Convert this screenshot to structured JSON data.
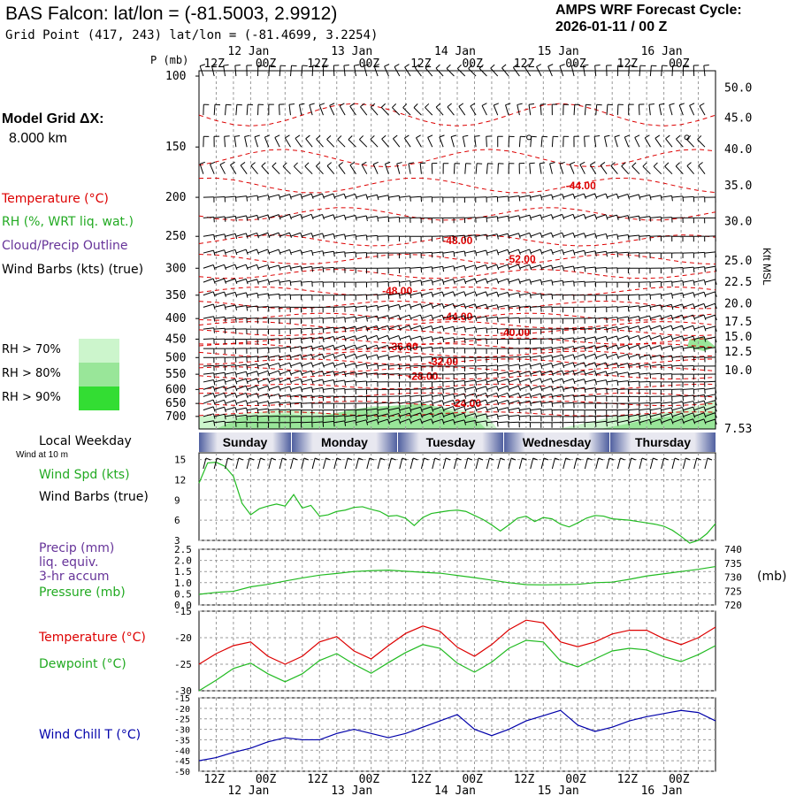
{
  "header": {
    "title": "BAS Falcon:  lat/lon = (-81.5003, 2.9912)",
    "grid_point": "Grid Point (417, 243) lat/lon = (-81.4699, 3.2254)",
    "forecast_line1": "AMPS WRF Forecast Cycle:",
    "forecast_line2": "2026-01-11 / 00  Z"
  },
  "sidebar": {
    "model_grid_label": "Model Grid ΔX:",
    "model_grid_value": "8.000 km",
    "temperature_label": "Temperature (°C)",
    "rh_label": "RH (%, WRT liq. wat.)",
    "cloud_label": "Cloud/Precip Outline",
    "wind_barbs_label": "Wind Barbs (kts) (true)",
    "rh70": "RH > 70%",
    "rh80": "RH > 80%",
    "rh90": "RH > 90%",
    "local_weekday": "Local Weekday",
    "wind_at_10m": "Wind at 10 m",
    "wind_spd_label": "Wind Spd (kts)",
    "wind_barbs_label2": "Wind Barbs (true)",
    "precip_label1": "Precip (mm)",
    "precip_label2": "liq. equiv.",
    "precip_label3": "3-hr accum",
    "pressure_label": "Pressure (mb)",
    "pressure_unit": "(mb)",
    "temp_label2": "Temperature (°C)",
    "dewpoint_label": "Dewpoint (°C)",
    "windchill_label": "Wind Chill T (°C)",
    "kft_label": "Kft MSL",
    "p_axis_label": "P (mb)"
  },
  "colors": {
    "temperature": "#dd0000",
    "rh_light": "#ccf5cc",
    "rh_mid": "#99e699",
    "rh_dark": "#33dd33",
    "rh_text": "#22aa22",
    "cloud": "#663399",
    "windchill": "#0000aa",
    "weekday_band": "#5060a0"
  },
  "chart_data": [
    {
      "type": "time-height cross-section",
      "title": "Temperature, RH, wind barbs vs pressure",
      "time_top_labels": [
        "12Z",
        "00Z",
        "12Z",
        "00Z",
        "12Z",
        "00Z",
        "12Z",
        "00Z",
        "12Z",
        "00Z"
      ],
      "date_top_labels": [
        "12 Jan",
        "13 Jan",
        "14 Jan",
        "15 Jan",
        "16 Jan"
      ],
      "pressure_levels": [
        100,
        150,
        200,
        250,
        300,
        350,
        400,
        450,
        500,
        550,
        600,
        650,
        700
      ],
      "height_kft_labels": [
        "50.0",
        "45.0",
        "40.0",
        "35.0",
        "30.0",
        "25.0",
        "22.5",
        "20.0",
        "17.5",
        "15.0",
        "12.5",
        "10.0",
        "7.53"
      ],
      "height_kft_pressure": [
        107,
        127,
        152,
        187,
        230,
        288,
        325,
        368,
        408,
        445,
        484,
        538,
        752
      ],
      "temperature_labels": [
        {
          "text": "-44.00",
          "time_h": 134,
          "p": 187
        },
        {
          "text": "-48.00",
          "time_h": 91,
          "p": 256
        },
        {
          "text": "-52.00",
          "time_h": 113,
          "p": 285
        },
        {
          "text": "-48.00",
          "time_h": 70,
          "p": 342
        },
        {
          "text": "-44.00",
          "time_h": 91,
          "p": 396
        },
        {
          "text": "-40.00",
          "time_h": 111,
          "p": 433
        },
        {
          "text": "-36.00",
          "time_h": 72,
          "p": 470
        },
        {
          "text": "-32.00",
          "time_h": 86,
          "p": 512
        },
        {
          "text": "-28.00",
          "time_h": 79,
          "p": 557
        },
        {
          "text": "-24.00",
          "time_h": 94,
          "p": 650
        }
      ]
    },
    {
      "type": "line",
      "title": "Wind Spd (kts)",
      "x_hours": [
        0,
        3,
        6,
        9,
        12,
        15,
        18,
        21,
        24,
        27,
        30,
        33,
        36,
        39,
        42,
        45,
        48,
        51,
        54,
        57,
        60,
        63,
        66,
        69,
        72,
        75,
        78,
        81,
        84,
        87,
        90,
        93,
        96,
        99,
        102,
        105,
        108,
        111,
        114,
        117,
        120,
        123,
        126,
        129,
        132,
        135,
        138,
        141,
        144,
        147,
        150,
        153,
        156,
        159,
        162,
        165,
        168,
        171,
        174,
        177,
        180
      ],
      "values": [
        11.5,
        14.5,
        14.6,
        14.0,
        12.5,
        8.5,
        6.8,
        7.7,
        8.1,
        8.4,
        8.1,
        9.8,
        7.8,
        8.2,
        6.6,
        6.8,
        7.3,
        7.5,
        7.9,
        8.0,
        7.6,
        7.3,
        6.6,
        6.7,
        6.3,
        5.2,
        6.4,
        7.0,
        7.2,
        7.4,
        7.5,
        7.3,
        6.7,
        6.1,
        5.3,
        4.4,
        5.3,
        6.3,
        6.6,
        5.8,
        6.4,
        6.2,
        5.4,
        5.0,
        5.6,
        6.3,
        6.7,
        6.6,
        6.2,
        6.1,
        6.0,
        5.8,
        5.6,
        5.4,
        5.1,
        4.5,
        3.6,
        2.6,
        3.0,
        4.0,
        5.5
      ],
      "yticks": [
        3,
        6,
        9,
        12,
        15
      ],
      "ylim": [
        3,
        16
      ]
    },
    {
      "type": "line",
      "title": "Pressure (mb)",
      "x_hours": [
        0,
        6,
        12,
        18,
        24,
        30,
        36,
        42,
        48,
        54,
        60,
        66,
        72,
        78,
        84,
        90,
        96,
        102,
        108,
        114,
        120,
        126,
        132,
        138,
        144,
        150,
        156,
        162,
        168,
        174,
        180
      ],
      "values": [
        723.8,
        724.5,
        724.9,
        726.5,
        727.4,
        728.6,
        729.7,
        730.7,
        731.3,
        732.0,
        732.3,
        732.5,
        732.1,
        731.7,
        731.4,
        730.6,
        729.8,
        728.9,
        728.0,
        727.3,
        727.2,
        727.3,
        727.4,
        728.0,
        728.2,
        729.2,
        730.4,
        731.2,
        732.0,
        732.8,
        733.8
      ],
      "yticks_left": [
        "0.0",
        "0.5",
        "1.0",
        "1.5",
        "2.0",
        "2.5"
      ],
      "yticks_right": [
        "720",
        "725",
        "730",
        "735",
        "740"
      ],
      "ylim": [
        720,
        740
      ]
    },
    {
      "type": "line",
      "title": "Temperature / Dewpoint (°C)",
      "x_hours": [
        0,
        6,
        12,
        18,
        24,
        30,
        36,
        42,
        48,
        54,
        60,
        66,
        72,
        78,
        84,
        90,
        96,
        102,
        108,
        114,
        120,
        126,
        132,
        138,
        144,
        150,
        156,
        162,
        168,
        174,
        180
      ],
      "series": [
        {
          "name": "Temperature",
          "values": [
            -25.0,
            -23.0,
            -21.5,
            -20.8,
            -23.5,
            -25.0,
            -23.5,
            -20.8,
            -19.8,
            -22.5,
            -24.0,
            -21.5,
            -19.2,
            -17.8,
            -18.8,
            -21.8,
            -23.5,
            -21.3,
            -18.5,
            -16.7,
            -17.2,
            -20.8,
            -21.7,
            -20.8,
            -19.3,
            -18.6,
            -18.6,
            -20.2,
            -21.3,
            -20.0,
            -18.0
          ]
        },
        {
          "name": "Dewpoint",
          "values": [
            -30.0,
            -28.0,
            -25.8,
            -24.8,
            -26.8,
            -28.3,
            -26.8,
            -24.3,
            -23.0,
            -25.0,
            -26.7,
            -24.7,
            -22.8,
            -21.3,
            -22.0,
            -24.8,
            -26.5,
            -24.6,
            -22.0,
            -20.5,
            -20.8,
            -24.4,
            -25.5,
            -24.0,
            -22.5,
            -22.0,
            -22.3,
            -23.6,
            -24.5,
            -23.2,
            -21.5
          ]
        }
      ],
      "yticks": [
        "-30",
        "-25",
        "-20",
        "-15"
      ],
      "ylim": [
        -30,
        -15
      ]
    },
    {
      "type": "line",
      "title": "Wind Chill T (°C)",
      "x_hours": [
        0,
        6,
        12,
        18,
        24,
        30,
        36,
        42,
        48,
        54,
        60,
        66,
        72,
        78,
        84,
        90,
        96,
        102,
        108,
        114,
        120,
        126,
        132,
        138,
        144,
        150,
        156,
        162,
        168,
        174,
        180
      ],
      "values": [
        -45.0,
        -43.5,
        -41.0,
        -39.0,
        -36.0,
        -34.0,
        -35.0,
        -35.0,
        -32.0,
        -30.0,
        -32.0,
        -34.0,
        -32.0,
        -29.0,
        -26.0,
        -23.0,
        -30.0,
        -33.0,
        -30.0,
        -26.0,
        -23.5,
        -21.0,
        -28.0,
        -31.0,
        -29.0,
        -26.0,
        -24.0,
        -22.5,
        -21.0,
        -22.0,
        -26.0
      ],
      "yticks": [
        "-50",
        "-45",
        "-40",
        "-35",
        "-30",
        "-25",
        "-20",
        "-15"
      ],
      "ylim": [
        -50,
        -15
      ]
    }
  ],
  "weekday_band": {
    "days": [
      "Sunday",
      "Monday",
      "Tuesday",
      "Wednesday",
      "Thursday"
    ]
  },
  "bottom_axis": {
    "time_labels": [
      "12Z",
      "00Z",
      "12Z",
      "00Z",
      "12Z",
      "00Z",
      "12Z",
      "00Z",
      "12Z",
      "00Z"
    ],
    "date_labels": [
      "12 Jan",
      "13 Jan",
      "14 Jan",
      "15 Jan",
      "16 Jan"
    ]
  }
}
